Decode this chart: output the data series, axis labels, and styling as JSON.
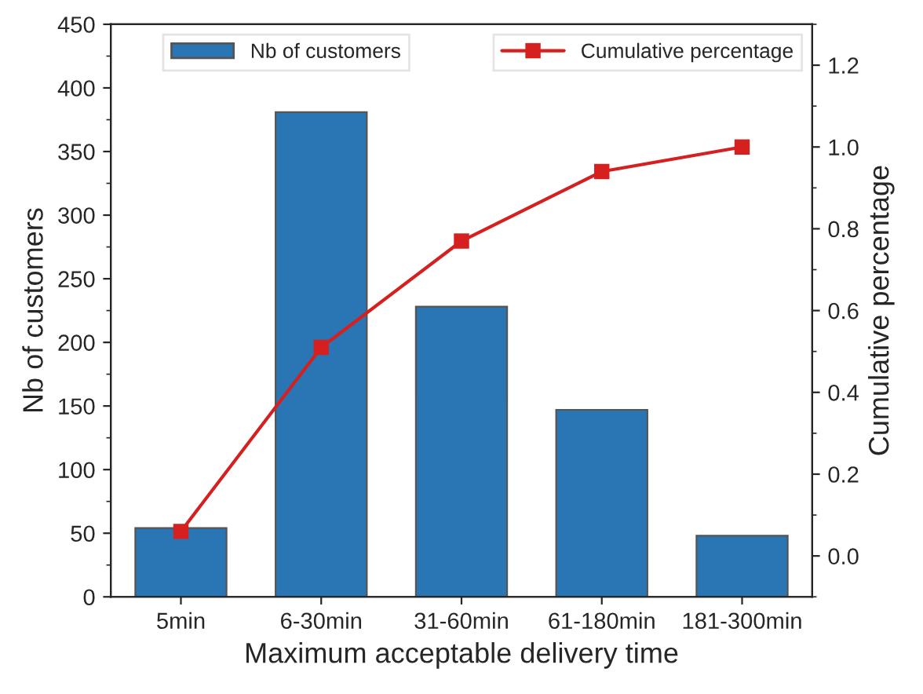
{
  "chart_data": {
    "type": "bar",
    "xlabel": "Maximum acceptable delivery time",
    "ylabel": "Nb of customers",
    "y2label": "Cumulative percentage",
    "categories": [
      "5min",
      "6-30min",
      "31-60min",
      "61-180min",
      "181-300min"
    ],
    "series": [
      {
        "name": "Nb of customers",
        "color": "#2a75b3",
        "values": [
          54,
          381,
          228,
          147,
          48
        ]
      },
      {
        "name": "Cumulative percentage",
        "type": "line",
        "axis": "y2",
        "color": "#d62020",
        "marker": "square",
        "values": [
          0.06,
          0.51,
          0.77,
          0.94,
          1.0
        ]
      }
    ],
    "ylim": [
      0,
      450
    ],
    "yticks": [
      0,
      50,
      100,
      150,
      200,
      250,
      300,
      350,
      400,
      450
    ],
    "y2lim": [
      -0.1,
      1.3
    ],
    "y2ticks": [
      {
        "value": 0,
        "label": "0.0"
      },
      0.2,
      0.4,
      0.6,
      0.8,
      {
        "value": 1,
        "label": "1.0"
      },
      1.2
    ],
    "grid": false,
    "legend": "top"
  }
}
